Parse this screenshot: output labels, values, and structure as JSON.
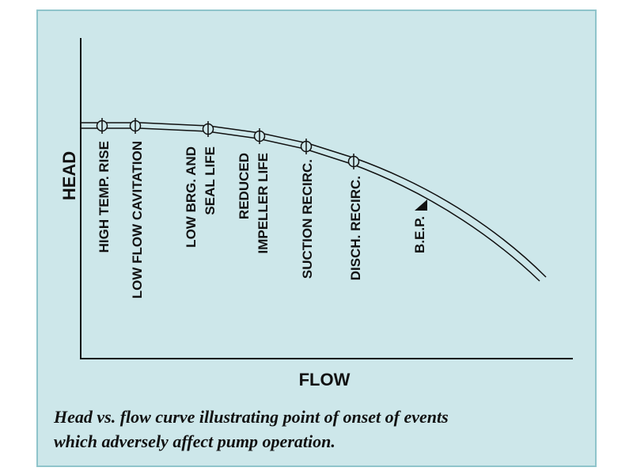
{
  "colors": {
    "panel_background": "#cde7ea",
    "panel_border": "#8fc4cb",
    "ink": "#111111"
  },
  "axes": {
    "y_label": "HEAD",
    "x_label": "FLOW"
  },
  "events": [
    {
      "lines": [
        "HIGH TEMP. RISE"
      ]
    },
    {
      "lines": [
        "LOW FLOW CAVITATION"
      ]
    },
    {
      "lines": [
        "LOW BRG. AND",
        "SEAL LIFE"
      ]
    },
    {
      "lines": [
        "REDUCED",
        "IMPELLER LIFE"
      ]
    },
    {
      "lines": [
        "SUCTION RECIRC."
      ]
    },
    {
      "lines": [
        "DISCH. RECIRC."
      ]
    }
  ],
  "bep": {
    "label": "B.E.P.",
    "marker_icon": "triangle-marker-icon"
  },
  "caption": {
    "line1": "Head vs. flow curve illustrating point of onset of events",
    "line2": "which adversely affect pump operation."
  }
}
